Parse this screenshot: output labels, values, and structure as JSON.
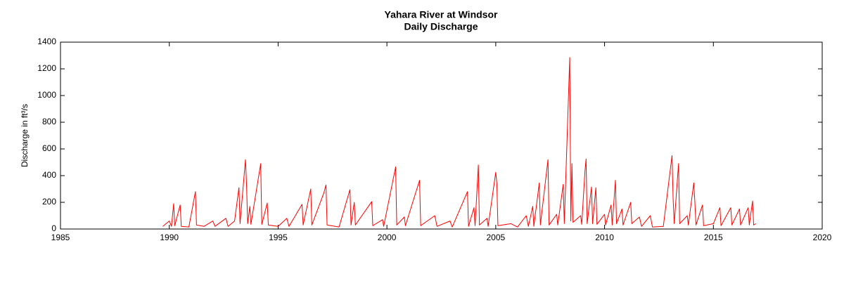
{
  "chart_data": {
    "type": "line",
    "title": "Yahara River at Windsor",
    "subtitle": "Daily Discharge",
    "y_label": "Discharge in ft³/s",
    "xlim": [
      1985,
      2020
    ],
    "xticks": [
      1985,
      1990,
      1995,
      2000,
      2005,
      2010,
      2015,
      2020
    ],
    "ylim": [
      0,
      1400
    ],
    "yticks": [
      0,
      200,
      400,
      600,
      800,
      1000,
      1200,
      1400
    ],
    "grid": false,
    "series": [
      {
        "color": "#ff0000",
        "x": [
          1989.7,
          1990.0,
          1990.1,
          1990.2,
          1990.25,
          1990.5,
          1990.55,
          1990.9,
          1991.2,
          1991.25,
          1991.6,
          1992.0,
          1992.1,
          1992.6,
          1992.7,
          1993.0,
          1993.2,
          1993.25,
          1993.5,
          1993.55,
          1993.6,
          1993.7,
          1993.75,
          1994.2,
          1994.25,
          1994.5,
          1994.55,
          1995.0,
          1995.4,
          1995.5,
          1996.1,
          1996.15,
          1996.5,
          1996.55,
          1997.1,
          1997.2,
          1997.25,
          1997.8,
          1998.3,
          1998.35,
          1998.5,
          1998.55,
          1999.3,
          1999.35,
          1999.8,
          1999.85,
          2000.4,
          2000.45,
          2000.8,
          2000.85,
          2001.5,
          2001.55,
          2002.2,
          2002.3,
          2002.9,
          2003.0,
          2003.7,
          2003.75,
          2004.0,
          2004.05,
          2004.2,
          2004.25,
          2004.6,
          2004.65,
          2005.0,
          2005.05,
          2005.1,
          2005.7,
          2006.0,
          2006.4,
          2006.5,
          2006.7,
          2006.75,
          2007.0,
          2007.05,
          2007.4,
          2007.45,
          2007.8,
          2007.85,
          2008.1,
          2008.15,
          2008.4,
          2008.45,
          2008.5,
          2008.55,
          2008.9,
          2008.95,
          2009.1,
          2009.15,
          2009.2,
          2009.4,
          2009.45,
          2009.6,
          2009.65,
          2010.0,
          2010.05,
          2010.3,
          2010.35,
          2010.5,
          2010.55,
          2010.8,
          2010.85,
          2011.2,
          2011.25,
          2011.6,
          2011.7,
          2012.1,
          2012.2,
          2012.7,
          2013.1,
          2013.15,
          2013.2,
          2013.4,
          2013.45,
          2013.8,
          2013.85,
          2014.1,
          2014.15,
          2014.2,
          2014.5,
          2014.55,
          2015.0,
          2015.3,
          2015.35,
          2015.8,
          2015.85,
          2016.2,
          2016.25,
          2016.6,
          2016.65,
          2016.8,
          2016.85,
          2016.95
        ],
        "values": [
          20,
          60,
          20,
          190,
          25,
          180,
          20,
          15,
          280,
          30,
          20,
          60,
          20,
          80,
          20,
          60,
          310,
          40,
          520,
          330,
          40,
          170,
          35,
          490,
          35,
          195,
          30,
          20,
          80,
          20,
          185,
          30,
          300,
          30,
          270,
          330,
          30,
          15,
          295,
          30,
          200,
          30,
          205,
          25,
          70,
          20,
          465,
          30,
          90,
          25,
          365,
          25,
          100,
          20,
          60,
          15,
          280,
          20,
          160,
          25,
          480,
          30,
          80,
          20,
          425,
          340,
          25,
          40,
          15,
          100,
          20,
          170,
          20,
          345,
          30,
          520,
          30,
          110,
          30,
          335,
          40,
          1285,
          60,
          490,
          50,
          100,
          35,
          435,
          525,
          40,
          315,
          40,
          310,
          35,
          110,
          30,
          180,
          30,
          365,
          40,
          150,
          30,
          200,
          40,
          90,
          20,
          100,
          15,
          20,
          550,
          230,
          40,
          490,
          40,
          100,
          30,
          345,
          200,
          30,
          180,
          25,
          40,
          160,
          25,
          160,
          30,
          150,
          30,
          160,
          30,
          210,
          30,
          40
        ]
      }
    ]
  }
}
